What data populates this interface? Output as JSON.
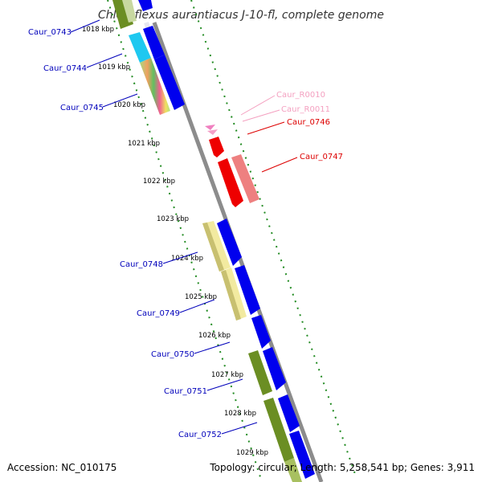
{
  "title": "Chloroflexus aurantiacus J-10-fl, complete genome",
  "footer": {
    "accession": "Accession: NC_010175",
    "summary": "Topology: circular; Length: 5,258,541 bp; Genes: 3,911"
  },
  "ticks": [
    "1018 kbp",
    "1019 kbp",
    "1020 kbp",
    "1021 kbp",
    "1022 kbp",
    "1023 kbp",
    "1024 kbp",
    "1025 kbp",
    "1026 kbp",
    "1027 kbp",
    "1028 kbp",
    "1029 kbp"
  ],
  "genes": [
    {
      "id": "Caur_0743",
      "color": "#0000bb"
    },
    {
      "id": "Caur_0744",
      "color": "#0000bb"
    },
    {
      "id": "Caur_0745",
      "color": "#0000bb"
    },
    {
      "id": "Caur_R0010",
      "color": "#f4a0c0"
    },
    {
      "id": "Caur_R0011",
      "color": "#f4a0c0"
    },
    {
      "id": "Caur_0746",
      "color": "#dd0000"
    },
    {
      "id": "Caur_0747",
      "color": "#dd0000"
    },
    {
      "id": "Caur_0748",
      "color": "#0000bb"
    },
    {
      "id": "Caur_0749",
      "color": "#0000bb"
    },
    {
      "id": "Caur_0750",
      "color": "#0000bb"
    },
    {
      "id": "Caur_0751",
      "color": "#0000bb"
    },
    {
      "id": "Caur_0752",
      "color": "#0000bb"
    }
  ],
  "colors": {
    "backbone": "#8c8c8c",
    "forward_cds": "#0000ee",
    "reverse_cds": "#ee0000",
    "reverse_cds_light": "#ee8080",
    "rna": "#f080c0",
    "yellow_feature": "#f2eaa0",
    "olive_feature": "#6b8e23",
    "cyan_feature": "#1ec8f0",
    "dotted_track": "#228b22"
  }
}
